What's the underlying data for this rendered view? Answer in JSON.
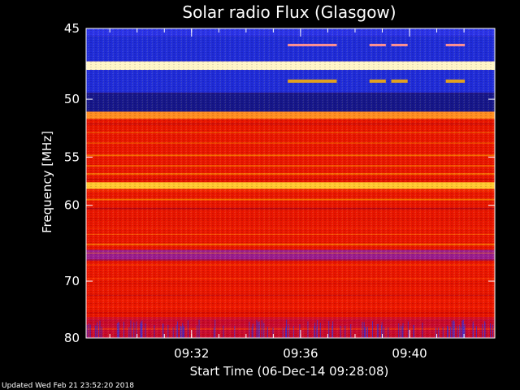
{
  "chart_data": {
    "type": "heatmap",
    "title": "Solar radio Flux (Glasgow)",
    "xlabel": "Start Time (06-Dec-14 09:28:08)",
    "ylabel": "Frequency [MHz]",
    "x_ticks": [
      "09:32",
      "09:36",
      "09:40"
    ],
    "x_tick_minutes": [
      3.87,
      7.87,
      11.87
    ],
    "x_range_minutes": [
      0,
      15.0
    ],
    "y_ticks": [
      45,
      50,
      55,
      60,
      70,
      80
    ],
    "y_range_mhz": [
      45,
      80
    ],
    "y_scale": "reciprocal",
    "colormap": [
      "#000000",
      "#2020c0",
      "#4040ff",
      "#c00000",
      "#ff0000",
      "#ff8000",
      "#ffff00",
      "#ffffff"
    ],
    "bands": [
      {
        "f_low": 45.0,
        "f_high": 45.5,
        "level": "blue-high"
      },
      {
        "f_low": 45.5,
        "f_high": 47.2,
        "level": "blue"
      },
      {
        "f_low": 47.2,
        "f_high": 47.8,
        "level": "white"
      },
      {
        "f_low": 47.8,
        "f_high": 49.5,
        "level": "blue"
      },
      {
        "f_low": 49.5,
        "f_high": 51.0,
        "level": "dark-blue"
      },
      {
        "f_low": 51.0,
        "f_high": 51.6,
        "level": "orange"
      },
      {
        "f_low": 51.6,
        "f_high": 57.5,
        "level": "red"
      },
      {
        "f_low": 57.5,
        "f_high": 58.2,
        "level": "yellow"
      },
      {
        "f_low": 58.2,
        "f_high": 65.5,
        "level": "red"
      },
      {
        "f_low": 65.5,
        "f_high": 67.0,
        "level": "purple"
      },
      {
        "f_low": 67.0,
        "f_high": 76.0,
        "level": "red"
      },
      {
        "f_low": 76.0,
        "f_high": 80.0,
        "level": "red-blue"
      }
    ],
    "grid": false,
    "legend": "none"
  },
  "footer": {
    "updated": "Updated Wed Feb 21 23:52:20 2018"
  }
}
